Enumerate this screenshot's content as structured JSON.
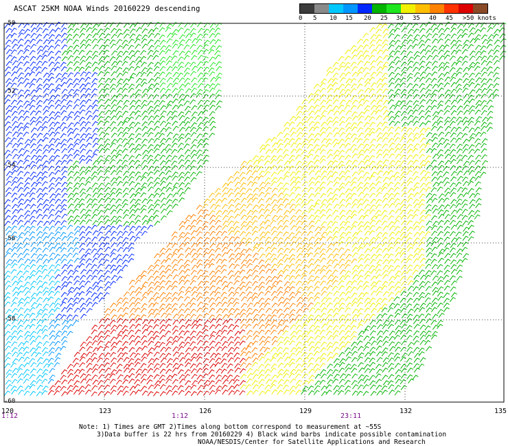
{
  "title": "ASCAT 25KM NOAA Winds 20160229 descending",
  "legend": {
    "colors": [
      "#3c3c3c",
      "#8a8a8a",
      "#00c8ff",
      "#0096ff",
      "#0028ff",
      "#00b400",
      "#1ee61e",
      "#f0f000",
      "#ffbe00",
      "#ff8200",
      "#ff3200",
      "#dc0000",
      "#8a4a28",
      "#c83cc8",
      "#ff00ff",
      "#9600ff",
      "#3c00c8"
    ],
    "ticks": [
      "0",
      "5",
      "10",
      "15",
      "20",
      "25",
      "30",
      "35",
      "40",
      "45",
      ">50 knots"
    ]
  },
  "lat_labels": [
    "-50",
    "-52",
    "-54",
    "-56",
    "-58",
    "-60"
  ],
  "lon_labels": [
    "120",
    "123",
    "126",
    "129",
    "132",
    "135"
  ],
  "time_labels": [
    "1:12",
    "1:12",
    "23:11"
  ],
  "notes": [
    "Note: 1) Times are GMT 2)Times along bottom correspond to measurement at ~55S",
    "3)Data buffer is 22 hrs from 20160229 4) Black wind barbs indicate possible contamination",
    "NOAA/NESDIS/Center for Satellite Applications and Research"
  ]
}
